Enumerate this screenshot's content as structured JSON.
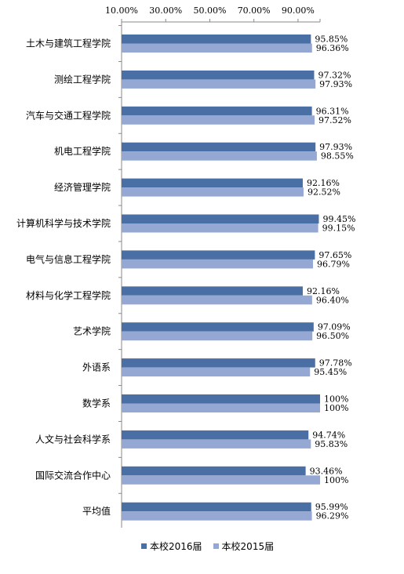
{
  "chart_data": {
    "type": "bar",
    "orientation": "horizontal",
    "title": "",
    "xlabel": "",
    "ylabel": "",
    "xlim": [
      10,
      100
    ],
    "x_ticks": [
      "10.00%",
      "30.00%",
      "50.00%",
      "70.00%",
      "90.00%"
    ],
    "x_tick_values": [
      10,
      30,
      50,
      70,
      90
    ],
    "grid": false,
    "legend_position": "bottom",
    "categories": [
      "土木与建筑工程学院",
      "测绘工程学院",
      "汽车与交通工程学院",
      "机电工程学院",
      "经济管理学院",
      "计算机科学与技术学院",
      "电气与信息工程学院",
      "材料与化学工程学院",
      "艺术学院",
      "外语系",
      "数学系",
      "人文与社会科学系",
      "国际交流合作中心",
      "平均值"
    ],
    "series": [
      {
        "name": "本校2016届",
        "color": "#4a6fa5",
        "values": [
          95.85,
          97.32,
          96.31,
          97.93,
          92.16,
          99.45,
          97.65,
          92.16,
          97.09,
          97.78,
          100,
          94.74,
          93.46,
          95.99
        ],
        "labels": [
          "95.85%",
          "97.32%",
          "96.31%",
          "97.93%",
          "92.16%",
          "99.45%",
          "97.65%",
          "92.16%",
          "97.09%",
          "97.78%",
          "100%",
          "94.74%",
          "93.46%",
          "95.99%"
        ]
      },
      {
        "name": "本校2015届",
        "color": "#95a8d4",
        "values": [
          96.36,
          97.93,
          97.52,
          98.55,
          92.52,
          99.15,
          96.79,
          96.4,
          96.5,
          95.45,
          100,
          95.83,
          100,
          96.29
        ],
        "labels": [
          "96.36%",
          "97.93%",
          "97.52%",
          "98.55%",
          "92.52%",
          "99.15%",
          "96.79%",
          "96.40%",
          "96.50%",
          "95.45%",
          "100%",
          "95.83%",
          "100%",
          "96.29%"
        ]
      }
    ]
  }
}
